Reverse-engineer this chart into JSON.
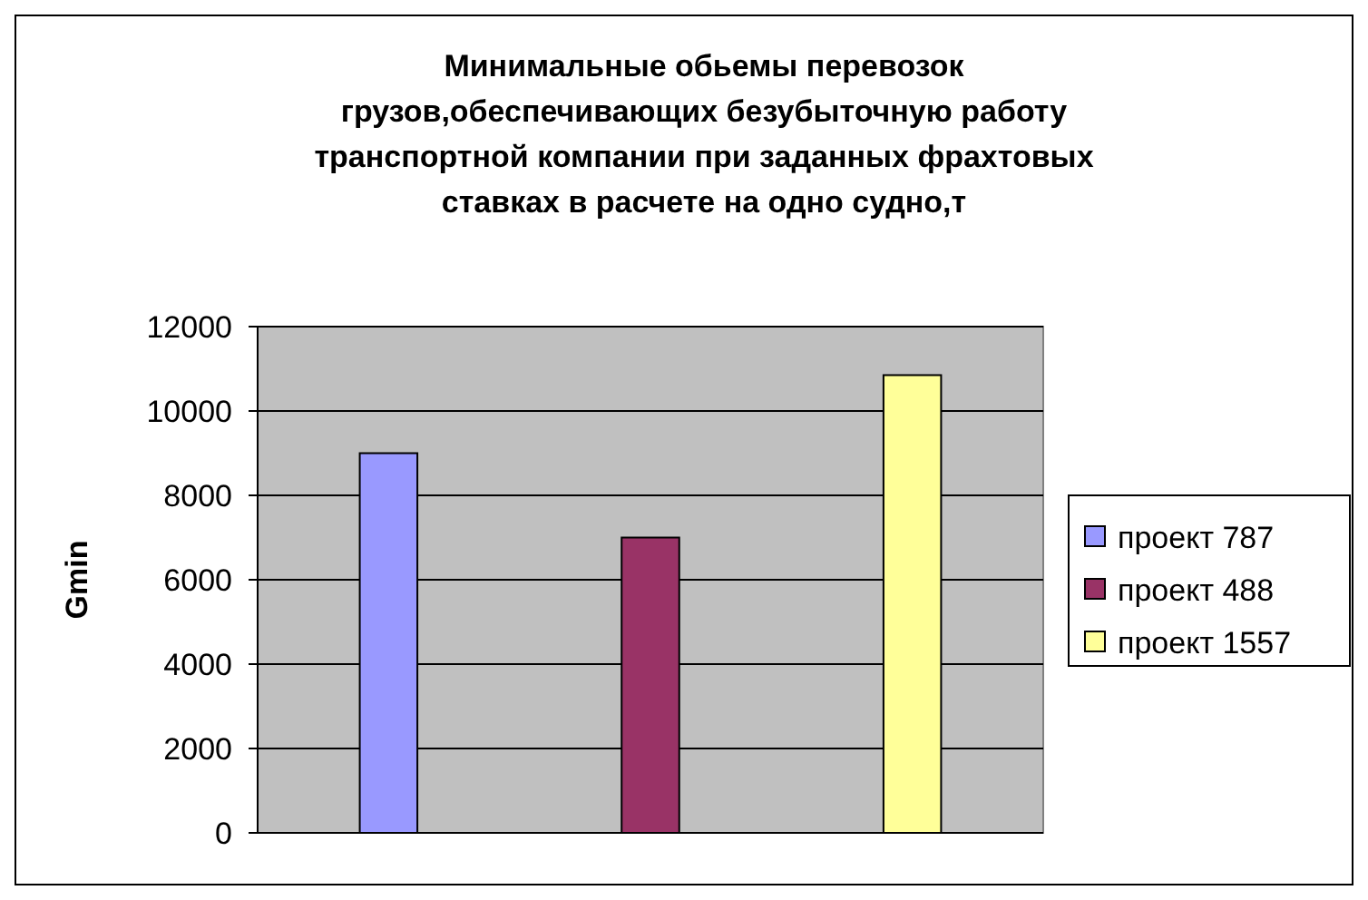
{
  "chart_data": {
    "type": "bar",
    "title": "Минимальные обьемы перевозок грузов,обеспечивающих безубыточную работу транспортной компании при заданных фрахтовых ставках в расчете на одно судно,т",
    "ylabel": "Gmin",
    "categories": [
      null
    ],
    "series": [
      {
        "name": "проект 787",
        "color": "#9999ff",
        "values": [
          9000
        ]
      },
      {
        "name": "проект 488",
        "color": "#993366",
        "values": [
          7000
        ]
      },
      {
        "name": "проект 1557",
        "color": "#ffff99",
        "values": [
          10850
        ]
      }
    ],
    "ylim": [
      0,
      12000
    ],
    "yticks": [
      0,
      2000,
      4000,
      6000,
      8000,
      10000,
      12000
    ],
    "grid": "y",
    "legend": "right"
  }
}
